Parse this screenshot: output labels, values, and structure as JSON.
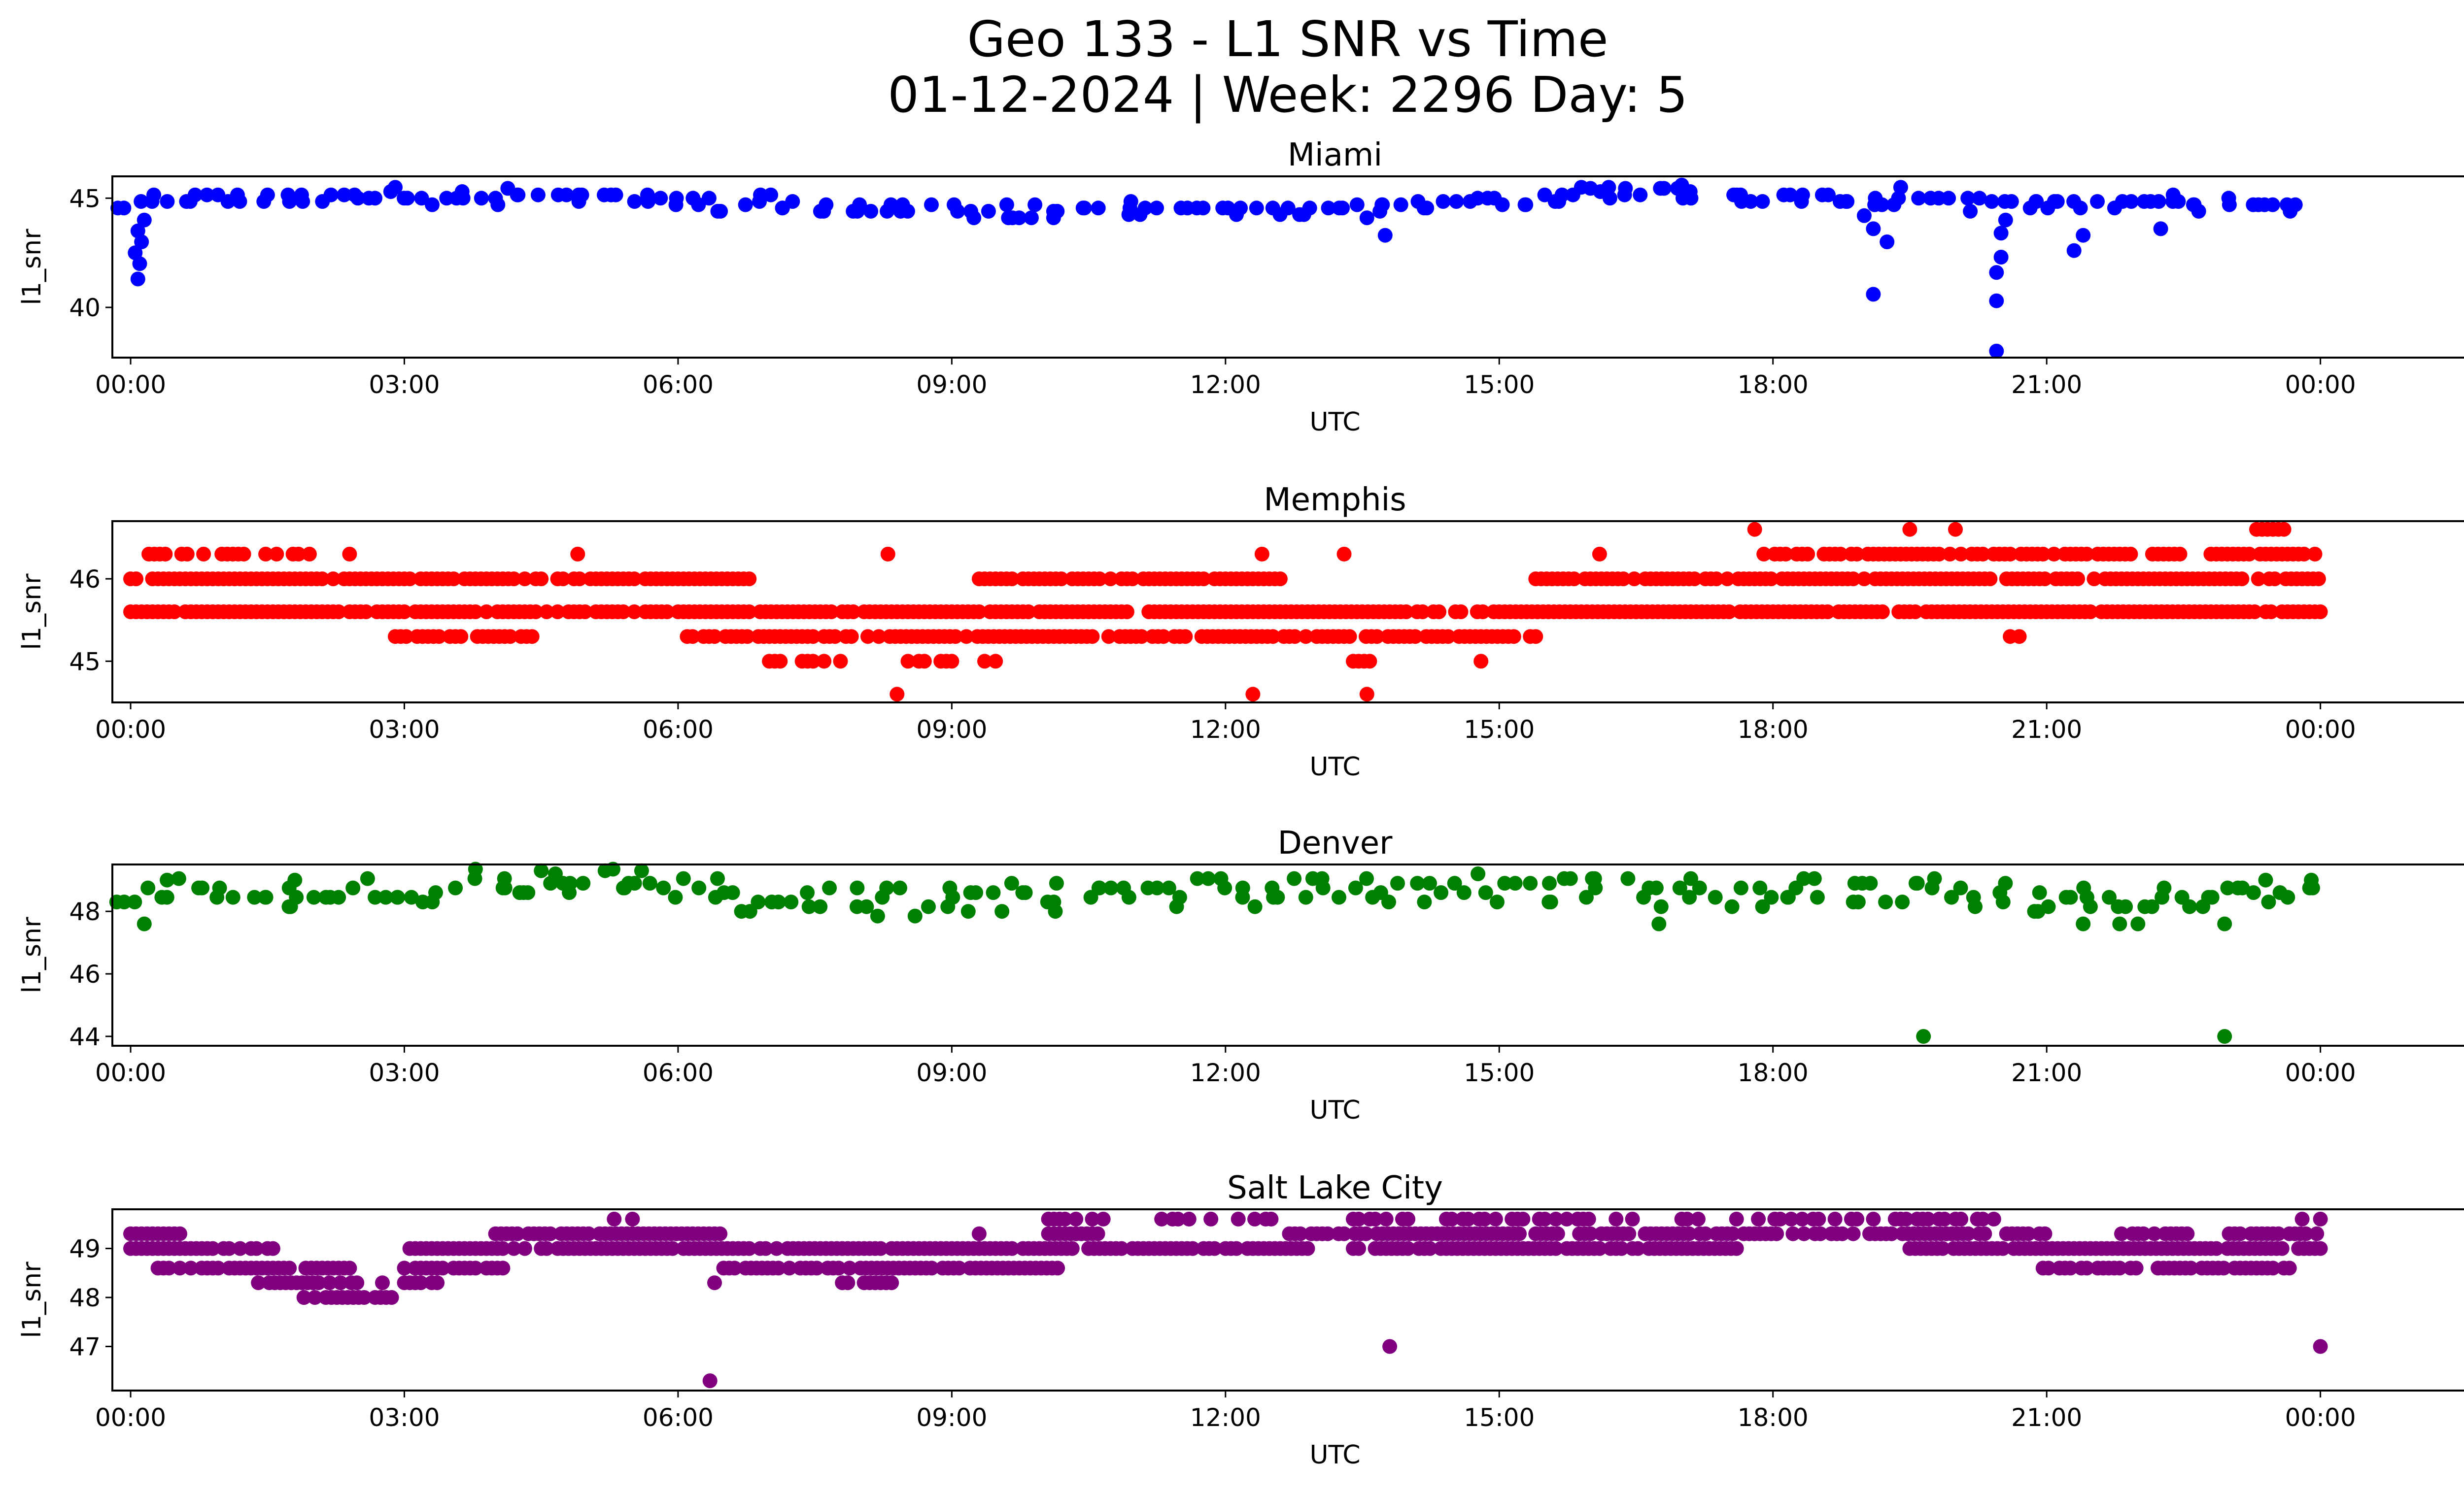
{
  "figure": {
    "title_line1": "Geo 133 - L1 SNR vs Time",
    "title_line2": "01-12-2024 | Week: 2296 Day: 5"
  },
  "chart_data": [
    {
      "type": "scatter",
      "title": "Miami",
      "xlabel": "UTC",
      "ylabel": "l1_snr",
      "color": "#0000ff",
      "xlim": [
        -0.2,
        26.6
      ],
      "ylim": [
        37.7,
        46.0
      ],
      "xticks": [
        "00:00",
        "03:00",
        "06:00",
        "09:00",
        "12:00",
        "15:00",
        "18:00",
        "21:00",
        "00:00"
      ],
      "yticks": [
        40,
        45
      ],
      "grid": false,
      "baseline": [
        [
          0.0,
          44.6
        ],
        [
          0.1,
          44.9
        ],
        [
          0.3,
          44.9
        ],
        [
          1.0,
          44.85
        ],
        [
          2.0,
          44.9
        ],
        [
          3.0,
          45.1
        ],
        [
          4.0,
          45.0
        ],
        [
          5.5,
          44.9
        ],
        [
          6.5,
          44.75
        ],
        [
          7.5,
          44.55
        ],
        [
          8.5,
          44.4
        ],
        [
          9.5,
          44.4
        ],
        [
          10.5,
          44.4
        ],
        [
          11.5,
          44.3
        ],
        [
          12.5,
          44.25
        ],
        [
          13.0,
          44.3
        ],
        [
          14.0,
          44.55
        ],
        [
          15.0,
          44.75
        ],
        [
          16.0,
          45.0
        ],
        [
          16.8,
          45.25
        ],
        [
          17.3,
          45.0
        ],
        [
          18.0,
          44.9
        ],
        [
          19.0,
          44.85
        ],
        [
          20.0,
          44.8
        ],
        [
          20.5,
          44.6
        ],
        [
          21.0,
          44.6
        ],
        [
          22.0,
          44.6
        ],
        [
          23.0,
          44.75
        ],
        [
          24.0,
          44.8
        ]
      ],
      "band": 0.25,
      "step": 0.33,
      "density_per_hour": 300,
      "seed": 11,
      "outliers": [
        [
          0.08,
          41.3
        ],
        [
          0.1,
          42.0
        ],
        [
          0.05,
          42.5
        ],
        [
          0.12,
          43.0
        ],
        [
          0.08,
          43.5
        ],
        [
          0.15,
          44.0
        ],
        [
          13.75,
          43.3
        ],
        [
          19.1,
          40.6
        ],
        [
          19.25,
          43.0
        ],
        [
          19.1,
          43.6
        ],
        [
          19.0,
          44.2
        ],
        [
          20.45,
          38.0
        ],
        [
          20.45,
          40.3
        ],
        [
          20.45,
          41.6
        ],
        [
          20.5,
          42.3
        ],
        [
          20.5,
          43.4
        ],
        [
          20.55,
          44.0
        ],
        [
          21.3,
          42.6
        ],
        [
          21.4,
          43.3
        ],
        [
          22.25,
          43.6
        ],
        [
          17.0,
          45.6
        ],
        [
          16.2,
          45.5
        ],
        [
          15.9,
          45.5
        ],
        [
          2.9,
          45.5
        ],
        [
          19.4,
          45.5
        ]
      ]
    },
    {
      "type": "scatter",
      "title": "Memphis",
      "xlabel": "UTC",
      "ylabel": "l1_snr",
      "color": "#ff0000",
      "xlim": [
        -0.2,
        26.6
      ],
      "ylim": [
        44.5,
        46.7
      ],
      "xticks": [
        "00:00",
        "03:00",
        "06:00",
        "09:00",
        "12:00",
        "15:00",
        "18:00",
        "21:00",
        "00:00"
      ],
      "yticks": [
        45,
        46
      ],
      "grid": false,
      "rows": [
        {
          "y": 45.6,
          "segments": [
            [
              0.0,
              24.0
            ]
          ],
          "density": 0.9
        },
        {
          "y": 46.0,
          "segments": [
            [
              0.0,
              6.8
            ],
            [
              9.3,
              12.6
            ],
            [
              15.4,
              24.0
            ]
          ],
          "density": 0.88
        },
        {
          "y": 45.3,
          "segments": [
            [
              2.9,
              4.5
            ],
            [
              6.1,
              15.4
            ]
          ],
          "density": 0.85
        },
        {
          "y": 46.3,
          "segments": [
            [
              0.2,
              0.8
            ],
            [
              1.0,
              2.0
            ],
            [
              17.9,
              22.5
            ],
            [
              22.8,
              24.0
            ]
          ],
          "density": 0.75
        },
        {
          "y": 45.0,
          "segments": [
            [
              7.0,
              7.8
            ],
            [
              8.4,
              9.5
            ],
            [
              13.4,
              13.7
            ]
          ],
          "density": 0.55
        },
        {
          "y": 46.6,
          "segments": [
            [
              17.8,
              17.85
            ],
            [
              19.5,
              19.55
            ],
            [
              20.0,
              20.05
            ],
            [
              23.3,
              23.6
            ]
          ],
          "density": 1.0
        },
        {
          "y": 44.6,
          "segments": [
            [
              8.4,
              8.45
            ],
            [
              12.3,
              12.35
            ],
            [
              13.55,
              13.6
            ]
          ],
          "density": 1.0
        }
      ],
      "step": 0.06,
      "seed": 23,
      "outliers": [
        [
          2.4,
          46.3
        ],
        [
          4.9,
          46.3
        ],
        [
          8.3,
          46.3
        ],
        [
          12.4,
          46.3
        ],
        [
          13.3,
          46.3
        ],
        [
          16.1,
          46.3
        ],
        [
          14.8,
          45.0
        ],
        [
          20.6,
          45.3
        ],
        [
          20.7,
          45.3
        ]
      ]
    },
    {
      "type": "scatter",
      "title": "Denver",
      "xlabel": "UTC",
      "ylabel": "l1_snr",
      "color": "#008000",
      "xlim": [
        -0.2,
        26.6
      ],
      "ylim": [
        43.7,
        49.5
      ],
      "xticks": [
        "00:00",
        "03:00",
        "06:00",
        "09:00",
        "12:00",
        "15:00",
        "18:00",
        "21:00",
        "00:00"
      ],
      "yticks": [
        44,
        46,
        48
      ],
      "grid": false,
      "baseline": [
        [
          0.0,
          48.6
        ],
        [
          1.0,
          48.55
        ],
        [
          2.0,
          48.45
        ],
        [
          3.0,
          48.55
        ],
        [
          4.0,
          48.9
        ],
        [
          5.0,
          49.0
        ],
        [
          5.5,
          48.7
        ],
        [
          6.5,
          48.4
        ],
        [
          7.5,
          48.3
        ],
        [
          8.5,
          48.2
        ],
        [
          9.5,
          48.35
        ],
        [
          10.5,
          48.45
        ],
        [
          11.5,
          48.45
        ],
        [
          12.5,
          48.5
        ],
        [
          13.5,
          48.55
        ],
        [
          14.5,
          48.7
        ],
        [
          15.5,
          48.65
        ],
        [
          16.5,
          48.5
        ],
        [
          17.5,
          48.45
        ],
        [
          18.5,
          48.6
        ],
        [
          19.5,
          48.65
        ],
        [
          20.3,
          48.4
        ],
        [
          21.0,
          48.3
        ],
        [
          22.0,
          48.15
        ],
        [
          23.0,
          48.2
        ],
        [
          23.5,
          48.45
        ],
        [
          24.0,
          48.5
        ]
      ],
      "band": 0.45,
      "step": 0.33,
      "density_per_hour": 300,
      "seed": 37,
      "outliers": [
        [
          0.15,
          47.6
        ],
        [
          19.65,
          44.0
        ],
        [
          22.95,
          44.0
        ],
        [
          22.95,
          47.6
        ],
        [
          21.4,
          47.6
        ],
        [
          21.8,
          47.6
        ],
        [
          22.0,
          47.6
        ],
        [
          16.75,
          47.6
        ],
        [
          4.5,
          49.3
        ],
        [
          5.2,
          49.3
        ],
        [
          5.6,
          49.3
        ],
        [
          0.4,
          49.0
        ],
        [
          1.8,
          49.0
        ],
        [
          23.4,
          49.0
        ],
        [
          23.9,
          49.0
        ]
      ]
    },
    {
      "type": "scatter",
      "title": "Salt Lake City",
      "xlabel": "UTC",
      "ylabel": "l1_snr",
      "color": "#800080",
      "xlim": [
        -0.2,
        26.6
      ],
      "ylim": [
        46.1,
        49.8
      ],
      "xticks": [
        "00:00",
        "03:00",
        "06:00",
        "09:00",
        "12:00",
        "15:00",
        "18:00",
        "21:00",
        "00:00"
      ],
      "yticks": [
        47,
        48,
        49
      ],
      "grid": false,
      "rows": [
        {
          "y": 49.3,
          "segments": [
            [
              0.0,
              0.6
            ],
            [
              4.0,
              6.5
            ],
            [
              10.0,
              10.6
            ],
            [
              12.7,
              21.0
            ],
            [
              21.7,
              22.6
            ],
            [
              23.0,
              24.0
            ]
          ],
          "density": 0.8
        },
        {
          "y": 49.0,
          "segments": [
            [
              0.0,
              1.6
            ],
            [
              3.0,
              12.9
            ],
            [
              13.4,
              17.6
            ],
            [
              19.5,
              24.0
            ]
          ],
          "density": 0.88
        },
        {
          "y": 48.6,
          "segments": [
            [
              0.3,
              2.4
            ],
            [
              3.0,
              4.1
            ],
            [
              6.5,
              10.2
            ],
            [
              20.9,
              23.7
            ]
          ],
          "density": 0.82
        },
        {
          "y": 48.3,
          "segments": [
            [
              1.4,
              2.5
            ],
            [
              2.7,
              3.4
            ],
            [
              7.8,
              8.4
            ]
          ],
          "density": 0.7
        },
        {
          "y": 48.0,
          "segments": [
            [
              1.9,
              2.9
            ]
          ],
          "density": 0.85
        },
        {
          "y": 49.6,
          "segments": [
            [
              10.0,
              10.7
            ],
            [
              11.3,
              12.5
            ],
            [
              13.4,
              16.5
            ],
            [
              17.0,
              17.2
            ],
            [
              17.6,
              20.5
            ]
          ],
          "density": 0.55
        }
      ],
      "step": 0.06,
      "seed": 53,
      "outliers": [
        [
          6.35,
          46.3
        ],
        [
          13.8,
          47.0
        ],
        [
          24.0,
          47.0
        ],
        [
          6.4,
          48.3
        ],
        [
          1.9,
          48.0
        ],
        [
          5.3,
          49.6
        ],
        [
          5.5,
          49.6
        ],
        [
          9.3,
          49.3
        ],
        [
          23.8,
          49.6
        ],
        [
          24.0,
          49.6
        ]
      ]
    }
  ]
}
